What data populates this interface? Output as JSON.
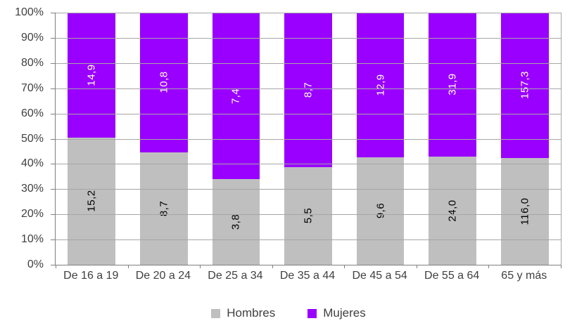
{
  "chart_data": {
    "type": "bar",
    "variant": "stacked-100-percent",
    "title": "",
    "xlabel": "",
    "ylabel": "",
    "categories": [
      "De 16 a 19",
      "De 20 a 24",
      "De 25 a 34",
      "De 35 a 44",
      "De 45 a 54",
      "De 55 a 64",
      "65 y más"
    ],
    "series": [
      {
        "name": "Hombres",
        "color": "#BFBFBF",
        "label_color": "#000000",
        "values": [
          15.2,
          8.7,
          3.8,
          5.5,
          9.6,
          24.0,
          116.0
        ],
        "labels": [
          "15,2",
          "8,7",
          "3,8",
          "5,5",
          "9,6",
          "24,0",
          "116,0"
        ]
      },
      {
        "name": "Mujeres",
        "color": "#9900FF",
        "label_color": "#FFFFFF",
        "values": [
          14.9,
          10.8,
          7.4,
          8.7,
          12.9,
          31.9,
          157.3
        ],
        "labels": [
          "14,9",
          "10,8",
          "7,4",
          "8,7",
          "12,9",
          "31,9",
          "157,3"
        ]
      }
    ],
    "yticks": [
      "0%",
      "10%",
      "20%",
      "30%",
      "40%",
      "50%",
      "60%",
      "70%",
      "80%",
      "90%",
      "100%"
    ],
    "ylim": [
      0,
      100
    ],
    "grid": true,
    "legend_position": "bottom",
    "axis_color": "#808080",
    "gridline_color": "#A6A6A6",
    "tick_label_color": "#404040"
  }
}
